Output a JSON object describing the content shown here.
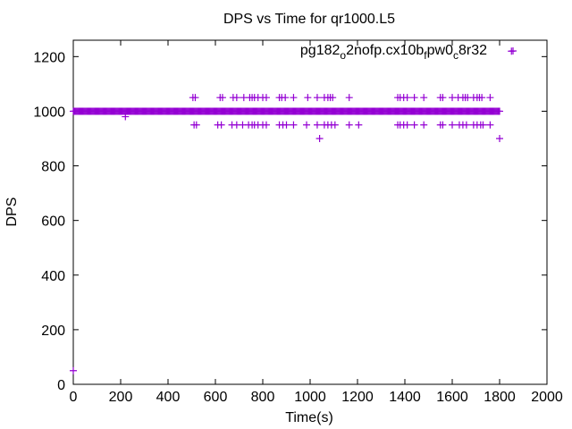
{
  "chart_data": {
    "type": "scatter",
    "title": "DPS vs Time for qr1000.L5",
    "xlabel": "Time(s)",
    "ylabel": "DPS",
    "xlim": [
      0,
      2000
    ],
    "ylim": [
      0,
      1260
    ],
    "xticks": [
      0,
      200,
      400,
      600,
      800,
      1000,
      1200,
      1400,
      1600,
      1800,
      2000
    ],
    "yticks": [
      0,
      200,
      400,
      600,
      800,
      1000,
      1200
    ],
    "grid": false,
    "legend_position": "top-right",
    "marker": "plus",
    "series": [
      {
        "name": "pg182_o2nofp.cx10b_fpw0_c8r32",
        "legend_parts": [
          {
            "text": "pg182",
            "sub": false
          },
          {
            "text": "o",
            "sub": true
          },
          {
            "text": "2nofp.cx10b",
            "sub": false
          },
          {
            "text": "f",
            "sub": true
          },
          {
            "text": "pw0",
            "sub": false
          },
          {
            "text": "c",
            "sub": true
          },
          {
            "text": "8r32",
            "sub": false
          }
        ],
        "color": "#9400d3",
        "dense_band": {
          "y": 1000,
          "x_from": 0,
          "x_to": 1800,
          "step": 4
        },
        "points": [
          [
            0,
            50
          ],
          [
            1850,
            1220
          ],
          [
            220,
            980
          ],
          [
            1040,
            900
          ],
          [
            1800,
            900
          ],
          [
            505,
            1050
          ],
          [
            515,
            1050
          ],
          [
            620,
            1050
          ],
          [
            630,
            1050
          ],
          [
            675,
            1050
          ],
          [
            690,
            1050
          ],
          [
            720,
            1050
          ],
          [
            745,
            1050
          ],
          [
            755,
            1050
          ],
          [
            765,
            1050
          ],
          [
            780,
            1050
          ],
          [
            800,
            1050
          ],
          [
            815,
            1050
          ],
          [
            870,
            1050
          ],
          [
            880,
            1050
          ],
          [
            895,
            1050
          ],
          [
            930,
            1050
          ],
          [
            990,
            1050
          ],
          [
            1030,
            1050
          ],
          [
            1060,
            1050
          ],
          [
            1075,
            1050
          ],
          [
            1085,
            1050
          ],
          [
            1095,
            1050
          ],
          [
            1165,
            1050
          ],
          [
            1370,
            1050
          ],
          [
            1380,
            1050
          ],
          [
            1395,
            1050
          ],
          [
            1410,
            1050
          ],
          [
            1440,
            1050
          ],
          [
            1480,
            1050
          ],
          [
            1550,
            1050
          ],
          [
            1560,
            1050
          ],
          [
            1600,
            1050
          ],
          [
            1625,
            1050
          ],
          [
            1645,
            1050
          ],
          [
            1655,
            1050
          ],
          [
            1665,
            1050
          ],
          [
            1690,
            1050
          ],
          [
            1705,
            1050
          ],
          [
            1715,
            1050
          ],
          [
            1725,
            1050
          ],
          [
            1760,
            1050
          ],
          [
            510,
            950
          ],
          [
            520,
            950
          ],
          [
            610,
            950
          ],
          [
            625,
            950
          ],
          [
            670,
            950
          ],
          [
            690,
            950
          ],
          [
            715,
            950
          ],
          [
            740,
            950
          ],
          [
            755,
            950
          ],
          [
            765,
            950
          ],
          [
            780,
            950
          ],
          [
            800,
            950
          ],
          [
            815,
            950
          ],
          [
            870,
            950
          ],
          [
            885,
            950
          ],
          [
            900,
            950
          ],
          [
            930,
            950
          ],
          [
            985,
            950
          ],
          [
            1030,
            950
          ],
          [
            1060,
            950
          ],
          [
            1075,
            950
          ],
          [
            1090,
            950
          ],
          [
            1105,
            950
          ],
          [
            1165,
            950
          ],
          [
            1205,
            950
          ],
          [
            1370,
            950
          ],
          [
            1380,
            950
          ],
          [
            1395,
            950
          ],
          [
            1410,
            950
          ],
          [
            1440,
            950
          ],
          [
            1480,
            950
          ],
          [
            1550,
            950
          ],
          [
            1560,
            950
          ],
          [
            1600,
            950
          ],
          [
            1630,
            950
          ],
          [
            1645,
            950
          ],
          [
            1660,
            950
          ],
          [
            1690,
            950
          ],
          [
            1705,
            950
          ],
          [
            1720,
            950
          ],
          [
            1730,
            950
          ],
          [
            1760,
            950
          ]
        ]
      }
    ]
  }
}
